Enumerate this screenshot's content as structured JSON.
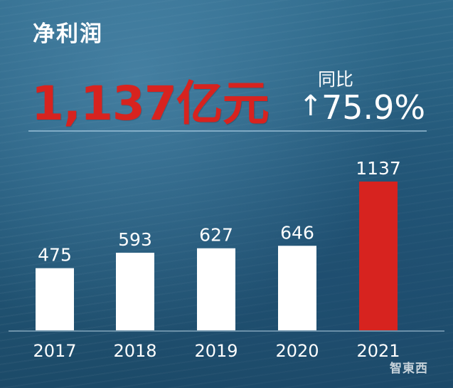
{
  "header": {
    "title": "净利润",
    "headline": "1,137亿元",
    "yoy_label": "同比",
    "yoy_arrow": "↑",
    "yoy_value": "75.9%"
  },
  "watermark": "智東西",
  "colors": {
    "normal_bar": "#ffffff",
    "highlight_bar": "#d7231f",
    "text": "#ffffff"
  },
  "chart_data": {
    "type": "bar",
    "title": "净利润",
    "categories": [
      "2017",
      "2018",
      "2019",
      "2020",
      "2021"
    ],
    "values": [
      475,
      593,
      627,
      646,
      1137
    ],
    "value_labels": [
      "475",
      "593",
      "627",
      "646",
      "1137"
    ],
    "highlight_index": 4,
    "xlabel": "",
    "ylabel": "",
    "ylim": [
      0,
      1137
    ],
    "grid": false,
    "legend": "none"
  }
}
